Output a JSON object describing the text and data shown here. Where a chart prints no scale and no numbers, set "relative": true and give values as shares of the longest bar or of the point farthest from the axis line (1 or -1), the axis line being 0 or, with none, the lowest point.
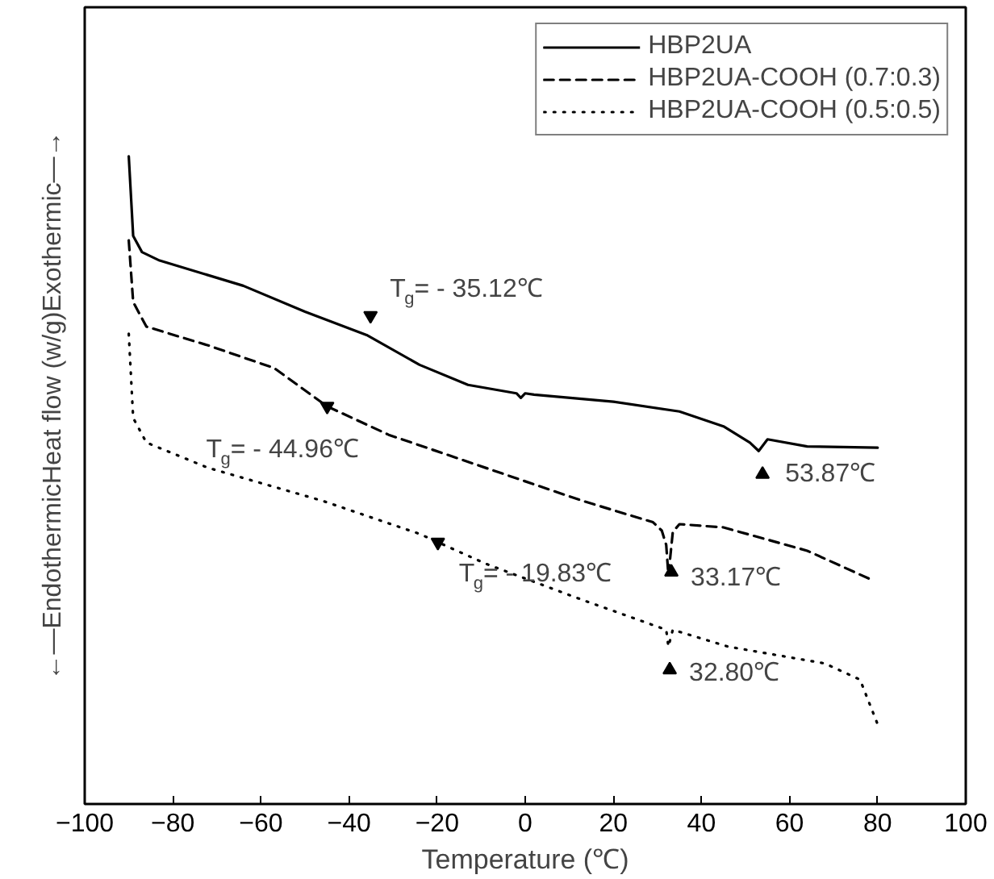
{
  "chart_data": {
    "type": "line",
    "relative": true,
    "xlabel": "Temperature (℃)",
    "ylabel": "←—EndothermicHeat flow (w/g)Exothermic—→",
    "xlim": [
      -100,
      100
    ],
    "xticks": [
      -100,
      -80,
      -60,
      -40,
      -20,
      0,
      20,
      40,
      60,
      80,
      100
    ],
    "tick_labels": "x",
    "legend": "top right",
    "grid": false,
    "series": [
      {
        "name": "HBP2UA",
        "color": "#000000",
        "line_style": "solid",
        "x": [
          -90,
          -89,
          -87,
          -83,
          -64,
          -50,
          -36,
          -24,
          -13,
          -2,
          -1,
          0,
          2,
          20,
          35,
          45,
          51,
          53,
          55,
          64,
          80
        ],
        "values": [
          1.0,
          0.877,
          0.852,
          0.839,
          0.8,
          0.76,
          0.724,
          0.678,
          0.647,
          0.634,
          0.627,
          0.634,
          0.632,
          0.621,
          0.606,
          0.583,
          0.558,
          0.545,
          0.563,
          0.552,
          0.55
        ]
      },
      {
        "name": "HBP2UA-COOH (0.7:0.3)",
        "color": "#000000",
        "line_style": "dashed",
        "x": [
          -90,
          -89,
          -86,
          -72,
          -57,
          -45,
          -31,
          -9,
          13,
          29,
          31,
          32,
          32.5,
          33.5,
          35,
          45,
          64,
          79
        ],
        "values": [
          0.87,
          0.775,
          0.737,
          0.708,
          0.673,
          0.614,
          0.57,
          0.519,
          0.468,
          0.435,
          0.422,
          0.4,
          0.353,
          0.42,
          0.432,
          0.427,
          0.391,
          0.345
        ]
      },
      {
        "name": "HBP2UA-COOH (0.5:0.5)",
        "color": "#000000",
        "line_style": "dotted",
        "x": [
          -90,
          -89,
          -86,
          -72,
          -46,
          -24,
          -9,
          13,
          32,
          32.5,
          33.5,
          46,
          68,
          76,
          80
        ],
        "values": [
          0.726,
          0.596,
          0.558,
          0.519,
          0.468,
          0.417,
          0.371,
          0.315,
          0.269,
          0.243,
          0.269,
          0.243,
          0.217,
          0.192,
          0.123
        ]
      }
    ],
    "annotations": [
      {
        "text": "T$_{g}$= - 35.12℃",
        "x": -35.12,
        "y": 0.754
      },
      {
        "text": "T$_{g}$= - 44.96℃",
        "x": -44.96,
        "y": 0.614
      },
      {
        "text": "T$_{g}$= - 19.83℃",
        "x": -19.83,
        "y": 0.404
      },
      {
        "text": "53.87℃",
        "x": 53.87,
        "y": 0.509
      },
      {
        "text": "33.17℃",
        "x": 33.17,
        "y": 0.358
      },
      {
        "text": "32.80℃",
        "x": 32.8,
        "y": 0.207
      }
    ]
  }
}
